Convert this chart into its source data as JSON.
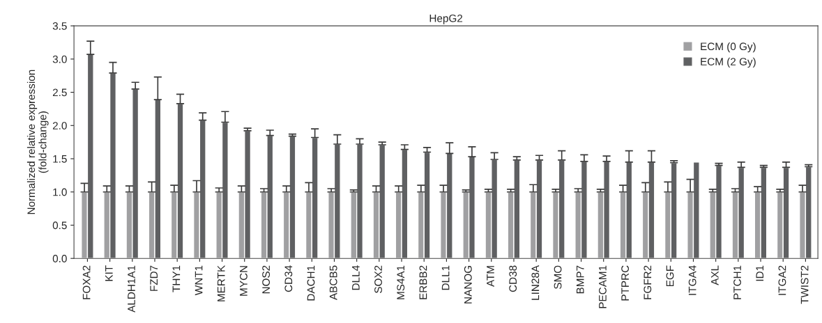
{
  "chart_data": {
    "type": "bar",
    "title": "HepG2",
    "ylabel": "Normalized relative expression\n(fold-change)",
    "categories": [
      "FOXA2",
      "KIT",
      "ALDH1A1",
      "FZD7",
      "THY1",
      "WNT1",
      "MERTK",
      "MYCN",
      "NOS2",
      "CD34",
      "DACH1",
      "ABCB5",
      "DLL4",
      "SOX2",
      "MS4A1",
      "ERBB2",
      "DLL1",
      "NANOG",
      "ATM",
      "CD38",
      "LIN28A",
      "SMO",
      "BMP7",
      "PECAM1",
      "PTPRC",
      "FGFR2",
      "EGF",
      "ITGA4",
      "AXL",
      "PTCH1",
      "ID1",
      "ITGA2",
      "TWIST2"
    ],
    "series": [
      {
        "name": "ECM (0 Gy)",
        "color": "#a0a0a2",
        "values": [
          1,
          1,
          1,
          1,
          1,
          1,
          1,
          1,
          1,
          1,
          1,
          1,
          1,
          1,
          1,
          1,
          1,
          1,
          1,
          1,
          1,
          1,
          1,
          1,
          1,
          1,
          1,
          1,
          1,
          1,
          1,
          1,
          1
        ],
        "errors": [
          [
            1,
            1.13
          ],
          [
            1,
            1.09
          ],
          [
            1,
            1.09
          ],
          [
            1,
            1.15
          ],
          [
            1,
            1.1
          ],
          [
            1,
            1.17
          ],
          [
            1,
            1.06
          ],
          [
            1,
            1.09
          ],
          [
            1,
            1.05
          ],
          [
            1,
            1.09
          ],
          [
            1,
            1.14
          ],
          [
            1,
            1.05
          ],
          [
            1,
            1.03
          ],
          [
            1,
            1.09
          ],
          [
            1,
            1.09
          ],
          [
            1,
            1.1
          ],
          [
            1,
            1.1
          ],
          [
            1,
            1.03
          ],
          [
            1,
            1.04
          ],
          [
            1,
            1.04
          ],
          [
            1,
            1.11
          ],
          [
            1,
            1.04
          ],
          [
            1,
            1.05
          ],
          [
            1,
            1.04
          ],
          [
            1,
            1.1
          ],
          [
            1,
            1.14
          ],
          [
            1,
            1.15
          ],
          [
            1,
            1.19
          ],
          [
            1,
            1.04
          ],
          [
            1,
            1.05
          ],
          [
            1,
            1.08
          ],
          [
            1,
            1.04
          ],
          [
            1,
            1.1
          ]
        ]
      },
      {
        "name": "ECM (2 Gy)",
        "color": "#5f6062",
        "values": [
          3.07,
          2.79,
          2.55,
          2.39,
          2.33,
          2.08,
          2.05,
          1.92,
          1.85,
          1.84,
          1.82,
          1.72,
          1.72,
          1.71,
          1.64,
          1.6,
          1.58,
          1.53,
          1.49,
          1.48,
          1.48,
          1.48,
          1.46,
          1.46,
          1.45,
          1.45,
          1.44,
          1.45,
          1.4,
          1.37,
          1.37,
          1.37,
          1.38
        ],
        "errors": [
          [
            3.07,
            3.27
          ],
          [
            2.79,
            2.95
          ],
          [
            2.55,
            2.65
          ],
          [
            2.39,
            2.73
          ],
          [
            2.33,
            2.47
          ],
          [
            2.08,
            2.19
          ],
          [
            2.05,
            2.21
          ],
          [
            1.92,
            1.96
          ],
          [
            1.85,
            1.93
          ],
          [
            1.84,
            1.87
          ],
          [
            1.82,
            1.95
          ],
          [
            1.72,
            1.86
          ],
          [
            1.72,
            1.8
          ],
          [
            1.71,
            1.75
          ],
          [
            1.64,
            1.71
          ],
          [
            1.6,
            1.67
          ],
          [
            1.58,
            1.74
          ],
          [
            1.53,
            1.68
          ],
          [
            1.49,
            1.59
          ],
          [
            1.48,
            1.53
          ],
          [
            1.48,
            1.55
          ],
          [
            1.48,
            1.62
          ],
          [
            1.46,
            1.56
          ],
          [
            1.46,
            1.54
          ],
          [
            1.45,
            1.62
          ],
          [
            1.45,
            1.62
          ],
          [
            1.44,
            1.47
          ],
          null,
          [
            1.4,
            1.43
          ],
          [
            1.37,
            1.45
          ],
          [
            1.37,
            1.4
          ],
          [
            1.37,
            1.45
          ],
          [
            1.38,
            1.41
          ]
        ]
      }
    ],
    "ylim": [
      0,
      3.5
    ],
    "yticks": [
      {
        "value": 0,
        "label": "0.0"
      },
      {
        "value": 0.5,
        "label": "0.5"
      },
      {
        "value": 1,
        "label": "1.0"
      },
      {
        "value": 1.5,
        "label": "1.5"
      },
      {
        "value": 2,
        "label": "2.0"
      },
      {
        "value": 2.5,
        "label": "2.5"
      },
      {
        "value": 3,
        "label": "3.0"
      },
      {
        "value": 3.5,
        "label": "3.5"
      }
    ],
    "grid": false,
    "legend": "top right"
  }
}
